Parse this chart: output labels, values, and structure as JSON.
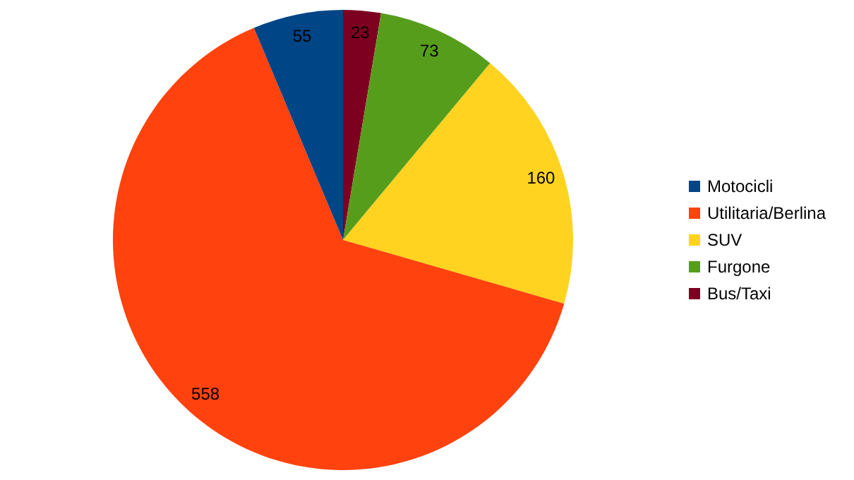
{
  "chart_data": {
    "type": "pie",
    "categories": [
      "Motocicli",
      "Utilitaria/Berlina",
      "SUV",
      "Furgone",
      "Bus/Taxi"
    ],
    "values": [
      55,
      558,
      160,
      73,
      23
    ],
    "colors": [
      "#004586",
      "#ff420e",
      "#ffd320",
      "#579d1c",
      "#7e0021"
    ],
    "data_labels": true,
    "legend": "right"
  }
}
